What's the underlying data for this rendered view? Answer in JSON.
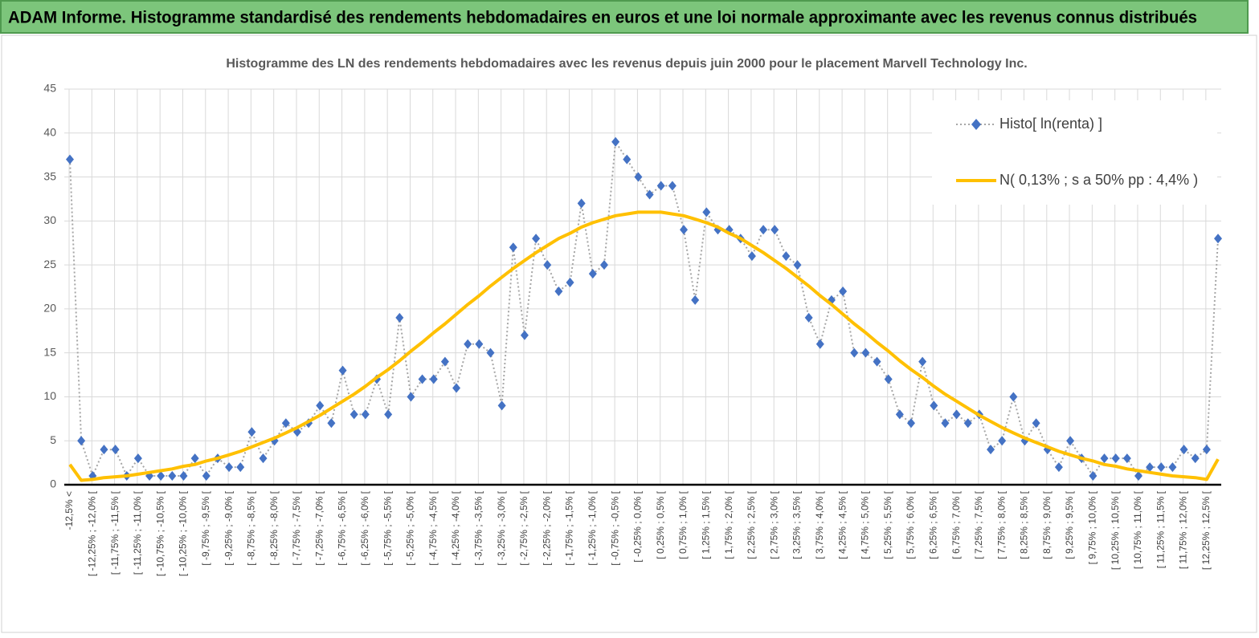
{
  "page_title": "ADAM Informe. Histogramme standardisé des rendements hebdomadaires en euros et une loi normale approximante avec les revenus connus distribués",
  "chart_data": {
    "type": "line",
    "title": "Histogramme des LN des rendements hebdomadaires avec les revenus depuis juin 2000 pour le placement Marvell Technology Inc.",
    "categories": [
      "-12,5% <",
      null,
      "[ -12,25% ; -12,0% [",
      null,
      "[ -11,75% ; -11,5% [",
      null,
      "[ -11,25% ; -11,0% [",
      null,
      "[ -10,75% ; -10,5% [",
      null,
      "[ -10,25% ; -10,0% [",
      null,
      "[ -9,75% ; -9,5% [",
      null,
      "[ -9,25% ; -9,0% [",
      null,
      "[ -8,75% ; -8,5% [",
      null,
      "[ -8,25% ; -8,0% [",
      null,
      "[ -7,75% ; -7,5% [",
      null,
      "[ -7,25% ; -7,0% [",
      null,
      "[ -6,75% ; -6,5% [",
      null,
      "[ -6,25% ; -6,0% [",
      null,
      "[ -5,75% ; -5,5% [",
      null,
      "[ -5,25% ; -5,0% [",
      null,
      "[ -4,75% ; -4,5% [",
      null,
      "[ -4,25% ; -4,0% [",
      null,
      "[ -3,75% ; -3,5% [",
      null,
      "[ -3,25% ; -3,0% [",
      null,
      "[ -2,75% ; -2,5% [",
      null,
      "[ -2,25% ; -2,0% [",
      null,
      "[ -1,75% ; -1,5% [",
      null,
      "[ -1,25% ; -1,0% [",
      null,
      "[ -0,75% ; -0,5% [",
      null,
      "[ -0,25% ; 0,0% [",
      null,
      "[ 0,25% ; 0,5% [",
      null,
      "[ 0,75% ; 1,0% [",
      null,
      "[ 1,25% ; 1,5% [",
      null,
      "[ 1,75% ; 2,0% [",
      null,
      "[ 2,25% ; 2,5% [",
      null,
      "[ 2,75% ; 3,0% [",
      null,
      "[ 3,25% ; 3,5% [",
      null,
      "[ 3,75% ; 4,0% [",
      null,
      "[ 4,25% ; 4,5% [",
      null,
      "[ 4,75% ; 5,0% [",
      null,
      "[ 5,25% ; 5,5% [",
      null,
      "[ 5,75% ; 6,0% [",
      null,
      "[ 6,25% ; 6,5% [",
      null,
      "[ 6,75% ; 7,0% [",
      null,
      "[ 7,25% ; 7,5% [",
      null,
      "[ 7,75% ; 8,0% [",
      null,
      "[ 8,25% ; 8,5% [",
      null,
      "[ 8,75% ; 9,0% [",
      null,
      "[ 9,25% ; 9,5% [",
      null,
      "[ 9,75% ; 10,0% [",
      null,
      "[ 10,25% ; 10,5% [",
      null,
      "[ 10,75% ; 11,0% [",
      null,
      "[ 11,25% ; 11,5% [",
      null,
      "[ 11,75% ; 12,0% [",
      null,
      "[ 12,25% ; 12,5% [",
      null
    ],
    "series": [
      {
        "name": "Histo[ ln(renta) ]",
        "color": "#4472c4",
        "values": [
          37,
          5,
          1,
          4,
          4,
          1,
          3,
          1,
          1,
          1,
          1,
          3,
          1,
          3,
          2,
          2,
          6,
          3,
          5,
          7,
          6,
          7,
          9,
          7,
          13,
          8,
          8,
          12,
          8,
          19,
          10,
          12,
          12,
          14,
          11,
          16,
          16,
          15,
          9,
          27,
          17,
          28,
          25,
          22,
          23,
          32,
          24,
          25,
          39,
          37,
          35,
          33,
          34,
          34,
          29,
          21,
          31,
          29,
          29,
          28,
          26,
          29,
          29,
          26,
          25,
          19,
          16,
          21,
          22,
          15,
          15,
          14,
          12,
          8,
          7,
          14,
          9,
          7,
          8,
          7,
          8,
          4,
          5,
          10,
          5,
          7,
          4,
          2,
          5,
          3,
          1,
          3,
          3,
          3,
          1,
          2,
          2,
          2,
          4,
          3,
          4,
          28
        ]
      },
      {
        "name": "N( 0,13% ; s a 50% pp : 4,4% )",
        "color": "#ffc000",
        "values": [
          2.3,
          0.5,
          0.6,
          0.8,
          0.9,
          1.0,
          1.2,
          1.4,
          1.6,
          1.8,
          2.1,
          2.3,
          2.7,
          3.0,
          3.4,
          3.8,
          4.3,
          4.8,
          5.3,
          5.9,
          6.5,
          7.2,
          7.9,
          8.7,
          9.5,
          10.3,
          11.2,
          12.2,
          13.1,
          14.1,
          15.2,
          16.2,
          17.3,
          18.3,
          19.4,
          20.5,
          21.5,
          22.6,
          23.6,
          24.6,
          25.5,
          26.4,
          27.2,
          28.0,
          28.6,
          29.3,
          29.8,
          30.2,
          30.6,
          30.8,
          31.0,
          31.0,
          31.0,
          30.8,
          30.6,
          30.2,
          29.8,
          29.3,
          28.6,
          28.0,
          27.2,
          26.4,
          25.5,
          24.6,
          23.6,
          22.6,
          21.5,
          20.5,
          19.4,
          18.3,
          17.3,
          16.2,
          15.2,
          14.1,
          13.1,
          12.2,
          11.2,
          10.3,
          9.5,
          8.7,
          7.9,
          7.2,
          6.5,
          5.9,
          5.3,
          4.8,
          4.3,
          3.8,
          3.4,
          3.0,
          2.7,
          2.3,
          2.1,
          1.8,
          1.6,
          1.4,
          1.2,
          1.0,
          0.9,
          0.8,
          0.6,
          2.9
        ]
      }
    ],
    "ylim": [
      0,
      45
    ],
    "yticks": [
      0,
      5,
      10,
      15,
      20,
      25,
      30,
      35,
      40,
      45
    ],
    "grid": true,
    "legend": "upper right"
  }
}
